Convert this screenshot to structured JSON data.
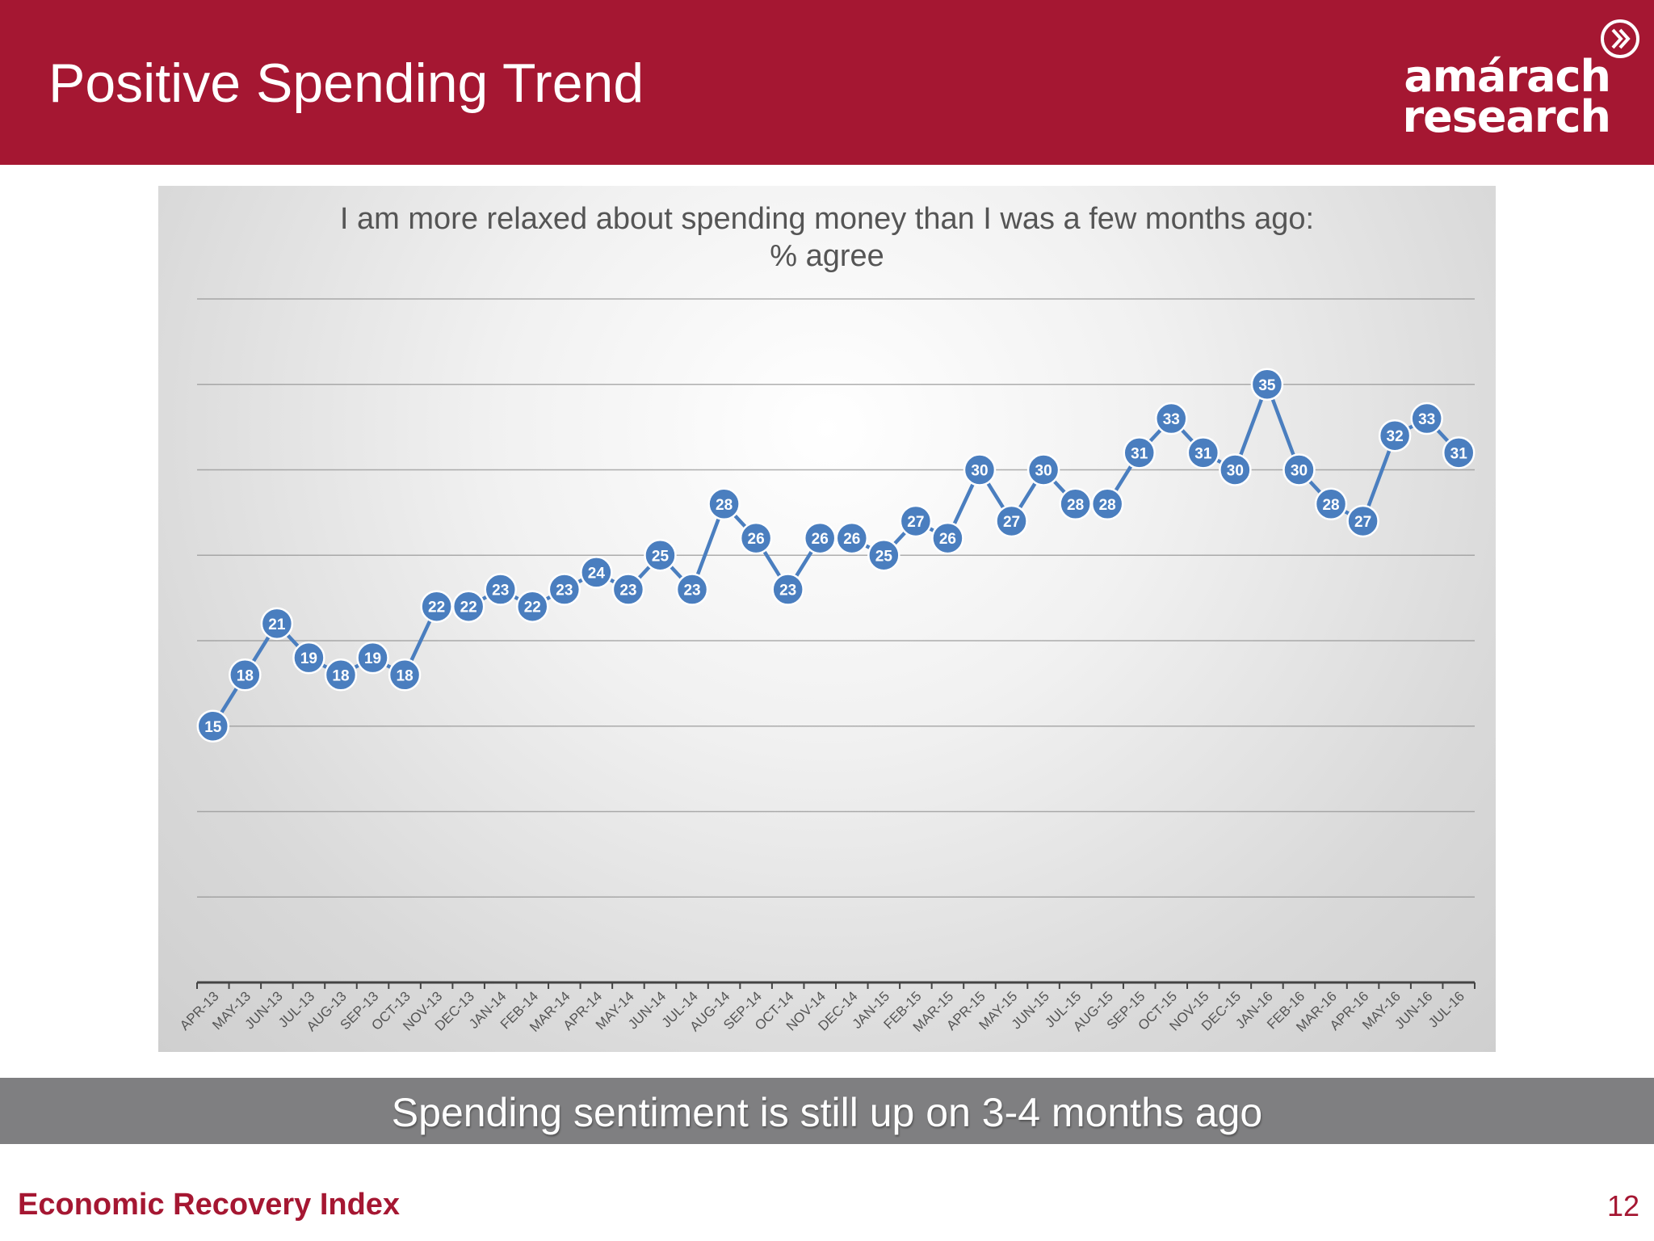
{
  "slide": {
    "title": "Positive Spending Trend",
    "logo_line1": "amárach",
    "logo_line2": "research",
    "banner_text": "Spending sentiment is still up on 3-4 months ago",
    "footer_label": "Economic Recovery Index",
    "page_number": "12"
  },
  "colors": {
    "brand": "#a51732",
    "banner": "#7f7f81",
    "series": "#4a7ebf"
  },
  "chart_data": {
    "type": "line",
    "title": "I am more relaxed about spending money than I was a few months ago:",
    "subtitle": "% agree",
    "xlabel": "",
    "ylabel": "",
    "ylim": [
      0,
      40
    ],
    "grid": true,
    "legend": "none",
    "categories": [
      "APR-13",
      "MAY-13",
      "JUN-13",
      "JUL-13",
      "AUG-13",
      "SEP-13",
      "OCT-13",
      "NOV-13",
      "DEC-13",
      "JAN-14",
      "FEB-14",
      "MAR-14",
      "APR-14",
      "MAY-14",
      "JUN-14",
      "JUL-14",
      "AUG-14",
      "SEP-14",
      "OCT-14",
      "NOV-14",
      "DEC-14",
      "JAN-15",
      "FEB-15",
      "MAR-15",
      "APR-15",
      "MAY-15",
      "JUN-15",
      "JUL-15",
      "AUG-15",
      "SEP-15",
      "OCT-15",
      "NOV-15",
      "DEC-15",
      "JAN-16",
      "FEB-16",
      "MAR-16",
      "APR-16",
      "MAY-16",
      "JUN-16",
      "JUL-16"
    ],
    "series": [
      {
        "values": [
          15,
          18,
          21,
          19,
          18,
          19,
          18,
          22,
          22,
          23,
          22,
          23,
          24,
          23,
          25,
          23,
          28,
          26,
          23,
          26,
          26,
          25,
          27,
          26,
          30,
          27,
          30,
          28,
          28,
          31,
          33,
          31,
          30,
          35,
          30,
          28,
          27,
          32,
          33,
          31
        ]
      }
    ]
  }
}
